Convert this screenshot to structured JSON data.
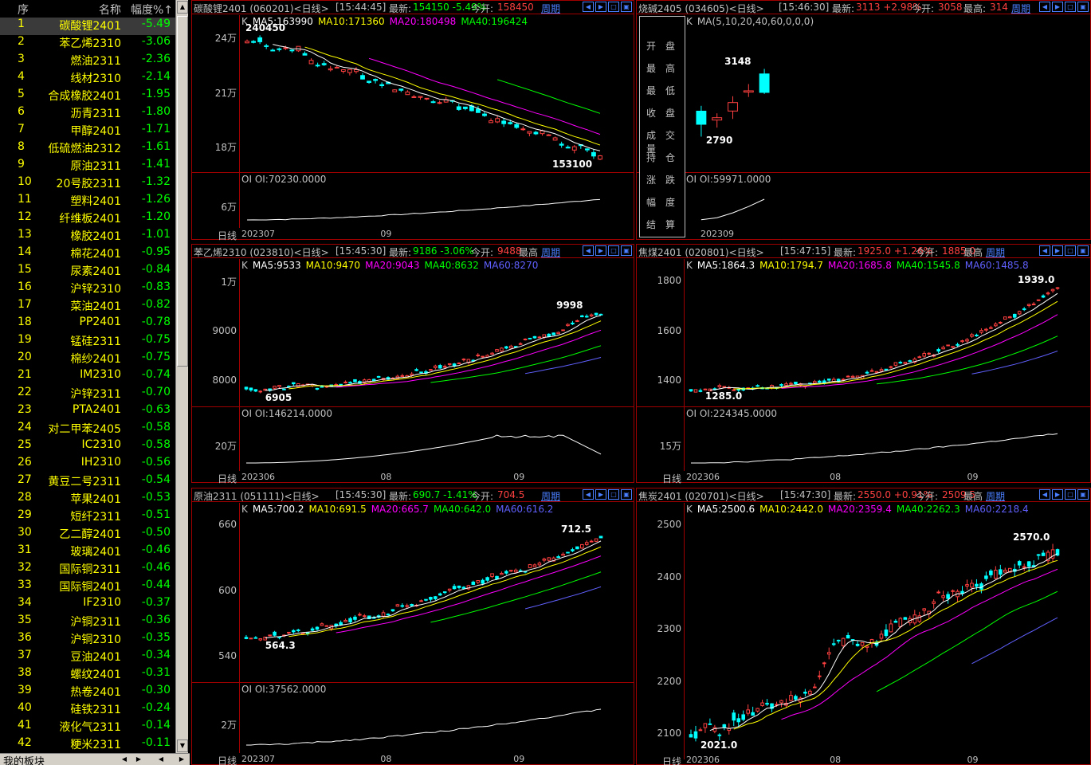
{
  "list": {
    "headers": {
      "seq": "序",
      "name": "名称",
      "pct": "幅度%↑"
    },
    "rows": [
      {
        "seq": "1",
        "name": "碳酸锂2401",
        "pct": "-5.49"
      },
      {
        "seq": "2",
        "name": "苯乙烯2310",
        "pct": "-3.06"
      },
      {
        "seq": "3",
        "name": "燃油2311",
        "pct": "-2.36"
      },
      {
        "seq": "4",
        "name": "线材2310",
        "pct": "-2.14"
      },
      {
        "seq": "5",
        "name": "合成橡胶2401",
        "pct": "-1.95"
      },
      {
        "seq": "6",
        "name": "沥青2311",
        "pct": "-1.80"
      },
      {
        "seq": "7",
        "name": "甲醇2401",
        "pct": "-1.71"
      },
      {
        "seq": "8",
        "name": "低硫燃油2312",
        "pct": "-1.61"
      },
      {
        "seq": "9",
        "name": "原油2311",
        "pct": "-1.41"
      },
      {
        "seq": "10",
        "name": "20号胶2311",
        "pct": "-1.32"
      },
      {
        "seq": "11",
        "name": "塑料2401",
        "pct": "-1.26"
      },
      {
        "seq": "12",
        "name": "纤维板2401",
        "pct": "-1.20"
      },
      {
        "seq": "13",
        "name": "橡胶2401",
        "pct": "-1.01"
      },
      {
        "seq": "14",
        "name": "棉花2401",
        "pct": "-0.95"
      },
      {
        "seq": "15",
        "name": "尿素2401",
        "pct": "-0.84"
      },
      {
        "seq": "16",
        "name": "沪锌2310",
        "pct": "-0.83"
      },
      {
        "seq": "17",
        "name": "菜油2401",
        "pct": "-0.82"
      },
      {
        "seq": "18",
        "name": "PP2401",
        "pct": "-0.78"
      },
      {
        "seq": "19",
        "name": "锰硅2311",
        "pct": "-0.75"
      },
      {
        "seq": "20",
        "name": "棉纱2401",
        "pct": "-0.75"
      },
      {
        "seq": "21",
        "name": "IM2310",
        "pct": "-0.74"
      },
      {
        "seq": "22",
        "name": "沪锌2311",
        "pct": "-0.70"
      },
      {
        "seq": "23",
        "name": "PTA2401",
        "pct": "-0.63"
      },
      {
        "seq": "24",
        "name": "对二甲苯2405",
        "pct": "-0.58"
      },
      {
        "seq": "25",
        "name": "IC2310",
        "pct": "-0.58"
      },
      {
        "seq": "26",
        "name": "IH2310",
        "pct": "-0.56"
      },
      {
        "seq": "27",
        "name": "黄豆二号2311",
        "pct": "-0.54"
      },
      {
        "seq": "28",
        "name": "苹果2401",
        "pct": "-0.53"
      },
      {
        "seq": "29",
        "name": "短纤2311",
        "pct": "-0.51"
      },
      {
        "seq": "30",
        "name": "乙二醇2401",
        "pct": "-0.50"
      },
      {
        "seq": "31",
        "name": "玻璃2401",
        "pct": "-0.46"
      },
      {
        "seq": "32",
        "name": "国际铜2311",
        "pct": "-0.46"
      },
      {
        "seq": "33",
        "name": "国际铜2401",
        "pct": "-0.44"
      },
      {
        "seq": "34",
        "name": "IF2310",
        "pct": "-0.37"
      },
      {
        "seq": "35",
        "name": "沪铜2311",
        "pct": "-0.36"
      },
      {
        "seq": "36",
        "name": "沪铜2310",
        "pct": "-0.35"
      },
      {
        "seq": "37",
        "name": "豆油2401",
        "pct": "-0.34"
      },
      {
        "seq": "38",
        "name": "螺纹2401",
        "pct": "-0.31"
      },
      {
        "seq": "39",
        "name": "热卷2401",
        "pct": "-0.30"
      },
      {
        "seq": "40",
        "name": "硅铁2311",
        "pct": "-0.24"
      },
      {
        "seq": "41",
        "name": "液化气2311",
        "pct": "-0.14"
      },
      {
        "seq": "42",
        "name": "粳米2311",
        "pct": "-0.11"
      }
    ],
    "footer": "我的板块"
  },
  "panels": [
    {
      "title": "碳酸锂2401 (060201)<日线>",
      "time": "[15:44:45]",
      "last_lbl": "最新:",
      "last": "154150 -5.49%",
      "open_lbl": "今开:",
      "open": "158450",
      "period": "周期",
      "ma": [
        "MA5:163990",
        "MA10:171360",
        "MA20:180498",
        "MA40:196424"
      ],
      "yticks": [
        "24万",
        "21万",
        "18万"
      ],
      "oi_tick": "6万",
      "oi": "OI:70230.0000",
      "hi": "240450",
      "lo": "153100",
      "x": [
        "202307",
        "09"
      ],
      "day": "日线"
    },
    {
      "title": "烧碱2405 (034605)<日线>",
      "time": "[15:46:30]",
      "last_lbl": "最新:",
      "last": "3113 +2.98%",
      "open_lbl": "今开:",
      "open": "3058",
      "hi_lbl": "最高:",
      "hi_val": "314",
      "period": "周期",
      "ma": [
        "MA(5,10,20,40,60,0,0,0)"
      ],
      "yticks": [],
      "oi": "OI:59971.0000",
      "hi": "3148",
      "lo": "2790",
      "x": [
        "202309"
      ],
      "info": [
        "开盘",
        "最高",
        "最低",
        "收盘",
        "成交量",
        "持仓",
        "涨跌",
        "幅度",
        "结算"
      ]
    },
    {
      "title": "苯乙烯2310 (023810)<日线>",
      "time": "[15:45:30]",
      "last_lbl": "最新:",
      "last": "9186 -3.06%",
      "open_lbl": "今开:",
      "open": "9488",
      "hi_lbl": "最高",
      "period": "周期",
      "ma": [
        "MA5:9533",
        "MA10:9470",
        "MA20:9043",
        "MA40:8632",
        "MA60:8270"
      ],
      "yticks": [
        "1万",
        "9000",
        "8000"
      ],
      "oi_tick": "20万",
      "oi": "OI:146214.0000",
      "hi": "9998",
      "lo": "6905",
      "x": [
        "202306",
        "08",
        "09"
      ],
      "day": "日线"
    },
    {
      "title": "焦煤2401 (020801)<日线>",
      "time": "[15:47:15]",
      "last_lbl": "最新:",
      "last": "1925.0 +1.26%",
      "open_lbl": "今开:",
      "open": "1885.0",
      "hi_lbl": "最高",
      "period": "周期",
      "ma": [
        "MA5:1864.3",
        "MA10:1794.7",
        "MA20:1685.8",
        "MA40:1545.8",
        "MA60:1485.8"
      ],
      "yticks": [
        "1800",
        "1600",
        "1400"
      ],
      "oi_tick": "15万",
      "oi": "OI:224345.0000",
      "hi": "1939.0",
      "lo": "1285.0",
      "x": [
        "202306",
        "08",
        "09"
      ],
      "day": "日线"
    },
    {
      "title": "原油2311 (051111)<日线>",
      "time": "[15:45:30]",
      "last_lbl": "最新:",
      "last": "690.7 -1.41%",
      "open_lbl": "今开:",
      "open": "704.5",
      "period": "周期",
      "ma": [
        "MA5:700.2",
        "MA10:691.5",
        "MA20:665.7",
        "MA40:642.0",
        "MA60:616.2"
      ],
      "yticks": [
        "660",
        "600",
        "540"
      ],
      "oi_tick": "2万",
      "oi": "OI:37562.0000",
      "hi": "712.5",
      "lo": "564.3",
      "x": [
        "202307",
        "08",
        "09"
      ],
      "day": "日线"
    },
    {
      "title": "焦炭2401 (020701)<日线>",
      "time": "[15:47:30]",
      "last_lbl": "最新:",
      "last": "2550.0 +0.91%",
      "open_lbl": "今开:",
      "open": "2509.5",
      "hi_lbl": "最高",
      "period": "周期",
      "ma": [
        "MA5:2500.6",
        "MA10:2442.0",
        "MA20:2359.4",
        "MA40:2262.3",
        "MA60:2218.4"
      ],
      "yticks": [
        "2500",
        "2400",
        "2300",
        "2200",
        "2100"
      ],
      "hi": "2570.0",
      "lo": "2021.0",
      "x": [
        "202306",
        "08",
        "09"
      ],
      "day": "日线"
    }
  ],
  "colors": {
    "up": "#ff4040",
    "down": "#00ffff",
    "ma5": "#ffffff",
    "ma10": "#ffff00",
    "ma20": "#ff00ff",
    "ma40": "#00ff00",
    "ma60": "#6060ff",
    "border": "#a00000"
  },
  "icons": [
    "arrow-left-icon",
    "arrow-right-icon",
    "window-icon",
    "close-icon"
  ]
}
